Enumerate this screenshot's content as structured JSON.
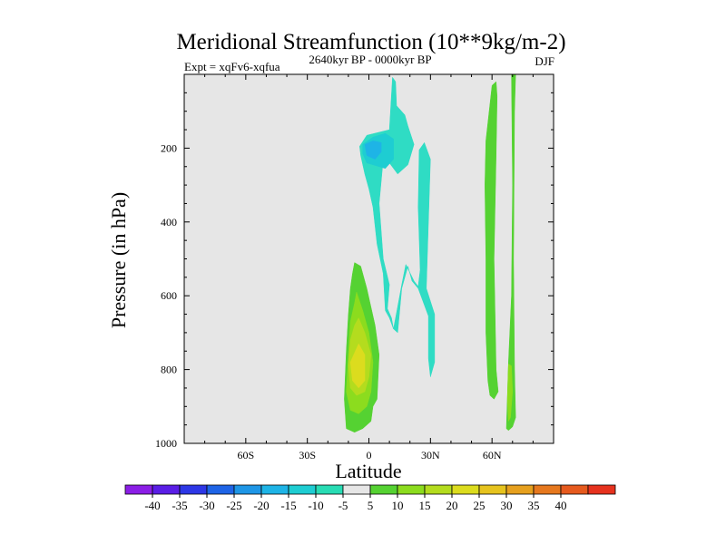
{
  "chart_data": {
    "type": "contour",
    "title": "Meridional Streamfunction (10**9kg/m-2)",
    "subtitle_left": "Expt = xqFv6-xqfua",
    "subtitle_center": "2640kyr BP - 0000kyr BP",
    "subtitle_right": "DJF",
    "xlabel": "Latitude",
    "ylabel": "Pressure (in hPa)",
    "xlim": [
      -90,
      90
    ],
    "ylim": [
      1000,
      0
    ],
    "x_ticks": [
      {
        "value": -60,
        "label": "60S"
      },
      {
        "value": -30,
        "label": "30S"
      },
      {
        "value": 0,
        "label": "0"
      },
      {
        "value": 30,
        "label": "30N"
      },
      {
        "value": 60,
        "label": "60N"
      }
    ],
    "y_ticks": [
      {
        "value": 200,
        "label": "200"
      },
      {
        "value": 400,
        "label": "400"
      },
      {
        "value": 600,
        "label": "600"
      },
      {
        "value": 800,
        "label": "800"
      },
      {
        "value": 1000,
        "label": "1000"
      }
    ],
    "background_color": "#e6e6e6",
    "colorbar": {
      "colors": [
        "#8b1ee6",
        "#5a1ee6",
        "#2d37e6",
        "#1e64e6",
        "#1e96e6",
        "#1eb4e6",
        "#1ecdd2",
        "#28dcb4",
        "#e6e6e6",
        "#55d232",
        "#8cdc1e",
        "#b4dc1e",
        "#dcdc1e",
        "#e6c31e",
        "#e6a01e",
        "#e6781e",
        "#e65a1e",
        "#e6321e"
      ],
      "labels": [
        "-40",
        "-35",
        "-30",
        "-25",
        "-20",
        "-15",
        "-10",
        "-5",
        "5",
        "10",
        "15",
        "20",
        "25",
        "30",
        "35",
        "40"
      ]
    },
    "regions": [
      {
        "level": -5,
        "color": "#2fdcc4",
        "points": [
          [
            -4.5,
            195
          ],
          [
            -1,
            165
          ],
          [
            10,
            150
          ],
          [
            11.5,
            8
          ],
          [
            13,
            20
          ],
          [
            13.5,
            85
          ],
          [
            17.5,
            110
          ],
          [
            19,
            140
          ],
          [
            22,
            190
          ],
          [
            19,
            245
          ],
          [
            14,
            270
          ],
          [
            10,
            240
          ],
          [
            7,
            230
          ],
          [
            5,
            350
          ],
          [
            7,
            500
          ],
          [
            10,
            570
          ],
          [
            9,
            635
          ],
          [
            11,
            660
          ],
          [
            12,
            690
          ],
          [
            14,
            630
          ],
          [
            16,
            570
          ],
          [
            18,
            515
          ],
          [
            22,
            560
          ],
          [
            24,
            575
          ],
          [
            25,
            530
          ],
          [
            24,
            360
          ],
          [
            24.5,
            205
          ],
          [
            27,
            185
          ],
          [
            30,
            230
          ],
          [
            29,
            400
          ],
          [
            28,
            580
          ],
          [
            32,
            650
          ],
          [
            32,
            780
          ],
          [
            30,
            820
          ],
          [
            29,
            770
          ],
          [
            29,
            655
          ],
          [
            24,
            580
          ],
          [
            21,
            560
          ],
          [
            19,
            520
          ],
          [
            16,
            580
          ],
          [
            14,
            700
          ],
          [
            12,
            690
          ],
          [
            10,
            660
          ],
          [
            8,
            640
          ],
          [
            7,
            540
          ],
          [
            4,
            460
          ],
          [
            2,
            360
          ],
          [
            0,
            310
          ],
          [
            -2,
            270
          ],
          [
            -4,
            220
          ]
        ]
      },
      {
        "level": -10,
        "color": "#1ecdd2",
        "points": [
          [
            -3,
            190
          ],
          [
            2,
            170
          ],
          [
            8,
            160
          ],
          [
            12,
            175
          ],
          [
            12,
            230
          ],
          [
            8,
            255
          ],
          [
            2,
            245
          ],
          [
            -1,
            240
          ],
          [
            -3,
            215
          ]
        ]
      },
      {
        "level": -15,
        "color": "#1eb4e6",
        "points": [
          [
            -2,
            190
          ],
          [
            2,
            180
          ],
          [
            6,
            185
          ],
          [
            6,
            210
          ],
          [
            3,
            230
          ],
          [
            -1,
            220
          ]
        ]
      },
      {
        "level": 5,
        "color": "#55d232",
        "points": [
          [
            -7,
            510
          ],
          [
            -4,
            520
          ],
          [
            -1,
            580
          ],
          [
            3,
            680
          ],
          [
            5,
            760
          ],
          [
            4,
            880
          ],
          [
            2,
            900
          ],
          [
            1,
            940
          ],
          [
            -3,
            960
          ],
          [
            -7,
            970
          ],
          [
            -11,
            960
          ],
          [
            -12,
            880
          ],
          [
            -11,
            750
          ],
          [
            -10,
            650
          ],
          [
            -9,
            580
          ],
          [
            -8,
            540
          ]
        ]
      },
      {
        "level": 10,
        "color": "#8cdc1e",
        "points": [
          [
            -6,
            590
          ],
          [
            -3,
            640
          ],
          [
            0,
            700
          ],
          [
            2,
            780
          ],
          [
            1,
            860
          ],
          [
            -1,
            900
          ],
          [
            -5,
            920
          ],
          [
            -9,
            910
          ],
          [
            -11,
            860
          ],
          [
            -10,
            760
          ],
          [
            -9,
            670
          ],
          [
            -7,
            620
          ]
        ]
      },
      {
        "level": 15,
        "color": "#b4dc1e",
        "points": [
          [
            -5,
            660
          ],
          [
            -2,
            700
          ],
          [
            1,
            760
          ],
          [
            0,
            820
          ],
          [
            -2,
            860
          ],
          [
            -6,
            870
          ],
          [
            -9,
            850
          ],
          [
            -10,
            790
          ],
          [
            -9,
            720
          ],
          [
            -7,
            680
          ]
        ]
      },
      {
        "level": 20,
        "color": "#dcdc1e",
        "points": [
          [
            -5,
            730
          ],
          [
            -2,
            760
          ],
          [
            -2,
            830
          ],
          [
            -5,
            850
          ],
          [
            -8,
            830
          ],
          [
            -9,
            780
          ]
        ]
      },
      {
        "level": 5,
        "color": "#55d232",
        "points": [
          [
            57,
            180
          ],
          [
            60,
            30
          ],
          [
            62,
            20
          ],
          [
            62.5,
            60
          ],
          [
            62,
            220
          ],
          [
            61,
            500
          ],
          [
            62,
            800
          ],
          [
            63,
            860
          ],
          [
            61,
            880
          ],
          [
            59,
            870
          ],
          [
            58,
            830
          ],
          [
            57,
            700
          ],
          [
            57,
            500
          ],
          [
            56.5,
            300
          ]
        ]
      },
      {
        "level": 5,
        "color": "#55d232",
        "points": [
          [
            69.5,
            0
          ],
          [
            71.5,
            0
          ],
          [
            71,
            100
          ],
          [
            70.5,
            500
          ],
          [
            71,
            800
          ],
          [
            71.5,
            930
          ],
          [
            70,
            955
          ],
          [
            68,
            965
          ],
          [
            67,
            960
          ],
          [
            68,
            780
          ],
          [
            69.5,
            600
          ],
          [
            70,
            300
          ]
        ]
      },
      {
        "level": 10,
        "color": "#8cdc1e",
        "points": [
          [
            68,
            785
          ],
          [
            69.5,
            790
          ],
          [
            70,
            860
          ],
          [
            69,
            930
          ],
          [
            68,
            940
          ],
          [
            67.5,
            880
          ]
        ]
      }
    ]
  }
}
